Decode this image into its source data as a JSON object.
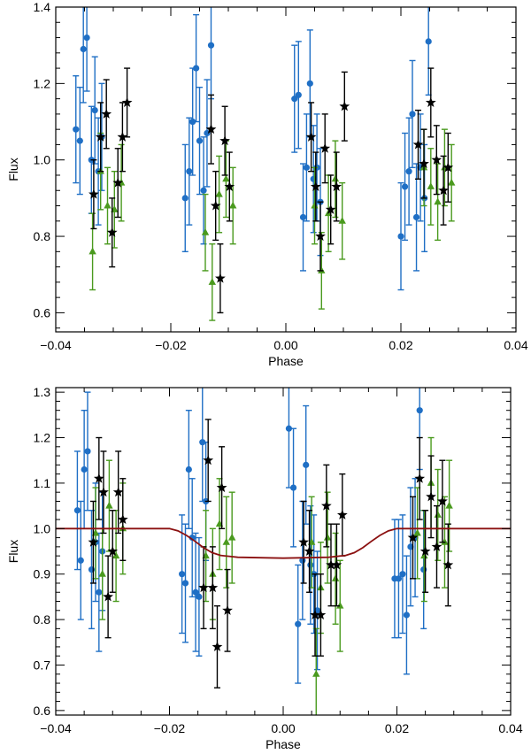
{
  "colors": {
    "blue": "#1f6fc5",
    "green": "#4a9a1e",
    "black": "#000000",
    "model": "#8b1010"
  },
  "chart_data": [
    {
      "type": "scatter",
      "title": "",
      "xlabel": "Phase",
      "ylabel": "Flux",
      "xlim": [
        -0.04,
        0.04
      ],
      "ylim": [
        0.55,
        1.4
      ],
      "xticks": [
        -0.04,
        -0.02,
        0.0,
        0.02,
        0.04
      ],
      "xtick_labels": [
        "−0.04",
        "−0.02",
        "0.00",
        "0.02",
        "0.04"
      ],
      "yticks": [
        0.6,
        0.8,
        1.0,
        1.2,
        1.4
      ],
      "ytick_labels": [
        "0.6",
        "0.8",
        "1.0",
        "1.2",
        "1.4"
      ],
      "series": [
        {
          "name": "blue",
          "marker": "circle",
          "color": "#1f6fc5",
          "points": [
            [
              -0.0365,
              1.08,
              0.14
            ],
            [
              -0.0358,
              1.05,
              0.14
            ],
            [
              -0.0352,
              1.29,
              0.14
            ],
            [
              -0.0346,
              1.32,
              0.14
            ],
            [
              -0.0338,
              1.0,
              0.14
            ],
            [
              -0.0332,
              1.13,
              0.14
            ],
            [
              -0.0326,
              0.97,
              0.14
            ],
            [
              -0.032,
              1.06,
              0.14
            ],
            [
              -0.0175,
              0.9,
              0.14
            ],
            [
              -0.0168,
              0.97,
              0.14
            ],
            [
              -0.0162,
              1.1,
              0.14
            ],
            [
              -0.0156,
              1.24,
              0.14
            ],
            [
              -0.015,
              1.05,
              0.14
            ],
            [
              -0.0143,
              0.92,
              0.14
            ],
            [
              -0.0137,
              1.07,
              0.14
            ],
            [
              -0.013,
              1.3,
              0.14
            ],
            [
              0.0015,
              1.16,
              0.14
            ],
            [
              0.0022,
              1.17,
              0.14
            ],
            [
              0.003,
              0.85,
              0.14
            ],
            [
              0.0036,
              0.98,
              0.14
            ],
            [
              0.0042,
              1.2,
              0.14
            ],
            [
              0.0048,
              0.95,
              0.14
            ],
            [
              0.0054,
              0.98,
              0.14
            ],
            [
              0.006,
              0.89,
              0.14
            ],
            [
              0.02,
              0.8,
              0.14
            ],
            [
              0.0207,
              0.93,
              0.14
            ],
            [
              0.0214,
              0.97,
              0.14
            ],
            [
              0.022,
              1.12,
              0.14
            ],
            [
              0.0227,
              0.85,
              0.14
            ],
            [
              0.0234,
              0.98,
              0.14
            ],
            [
              0.0241,
              0.9,
              0.14
            ],
            [
              0.0248,
              1.31,
              0.14
            ]
          ]
        },
        {
          "name": "green",
          "marker": "triangle",
          "color": "#4a9a1e",
          "points": [
            [
              -0.0336,
              0.76,
              0.1
            ],
            [
              -0.0322,
              0.97,
              0.1
            ],
            [
              -0.031,
              0.88,
              0.1
            ],
            [
              -0.0298,
              0.87,
              0.1
            ],
            [
              -0.0286,
              0.94,
              0.1
            ],
            [
              -0.014,
              0.81,
              0.1
            ],
            [
              -0.0128,
              0.68,
              0.1
            ],
            [
              -0.0116,
              0.91,
              0.1
            ],
            [
              -0.0104,
              0.95,
              0.1
            ],
            [
              -0.0092,
              0.88,
              0.1
            ],
            [
              0.005,
              0.88,
              0.1
            ],
            [
              0.0062,
              0.71,
              0.1
            ],
            [
              0.0074,
              0.86,
              0.1
            ],
            [
              0.0086,
              0.95,
              0.1
            ],
            [
              0.0098,
              0.84,
              0.1
            ],
            [
              0.024,
              0.98,
              0.1
            ],
            [
              0.0252,
              0.93,
              0.1
            ],
            [
              0.0264,
              0.89,
              0.1
            ],
            [
              0.0276,
              0.98,
              0.1
            ],
            [
              0.0288,
              0.94,
              0.1
            ]
          ]
        },
        {
          "name": "black",
          "marker": "star",
          "color": "#000000",
          "points": [
            [
              -0.0334,
              0.91,
              0.09
            ],
            [
              -0.0322,
              1.06,
              0.09
            ],
            [
              -0.0312,
              1.12,
              0.09
            ],
            [
              -0.0302,
              0.81,
              0.09
            ],
            [
              -0.0292,
              0.94,
              0.09
            ],
            [
              -0.0284,
              1.06,
              0.09
            ],
            [
              -0.0276,
              1.15,
              0.09
            ],
            [
              -0.013,
              1.08,
              0.09
            ],
            [
              -0.0122,
              0.88,
              0.09
            ],
            [
              -0.0114,
              0.69,
              0.09
            ],
            [
              -0.0106,
              1.05,
              0.09
            ],
            [
              -0.0098,
              0.93,
              0.09
            ],
            [
              0.0044,
              1.06,
              0.09
            ],
            [
              0.0052,
              0.93,
              0.09
            ],
            [
              0.006,
              0.8,
              0.09
            ],
            [
              0.0068,
              1.03,
              0.09
            ],
            [
              0.0078,
              0.87,
              0.09
            ],
            [
              0.0088,
              0.93,
              0.09
            ],
            [
              0.0102,
              1.14,
              0.09
            ],
            [
              0.023,
              1.04,
              0.09
            ],
            [
              0.024,
              0.99,
              0.09
            ],
            [
              0.0252,
              1.15,
              0.09
            ],
            [
              0.0262,
              1.0,
              0.09
            ],
            [
              0.0274,
              0.92,
              0.09
            ],
            [
              0.0282,
              0.98,
              0.09
            ]
          ]
        }
      ]
    },
    {
      "type": "scatter",
      "title": "",
      "xlabel": "Phase",
      "ylabel": "Flux",
      "xlim": [
        -0.04,
        0.04
      ],
      "ylim": [
        0.59,
        1.31
      ],
      "xticks": [
        -0.04,
        -0.02,
        0.0,
        0.02,
        0.04
      ],
      "xtick_labels": [
        "−0.04",
        "−0.02",
        "0.00",
        "0.02",
        "0.04"
      ],
      "yticks": [
        0.6,
        0.7,
        0.8,
        0.9,
        1.0,
        1.1,
        1.2,
        1.3
      ],
      "ytick_labels": [
        "0.6",
        "0.7",
        "0.8",
        "0.9",
        "1.0",
        "1.1",
        "1.2",
        "1.3"
      ],
      "model_line": {
        "name": "transit model",
        "color": "#8b1010",
        "x": [
          -0.04,
          -0.02,
          -0.0185,
          -0.017,
          -0.0155,
          -0.014,
          -0.0125,
          -0.011,
          -0.0095,
          -0.008,
          0.0,
          0.008,
          0.0095,
          0.011,
          0.0125,
          0.014,
          0.0155,
          0.017,
          0.0185,
          0.02,
          0.04
        ],
        "y": [
          1.0,
          1.0,
          0.995,
          0.985,
          0.972,
          0.958,
          0.947,
          0.941,
          0.939,
          0.937,
          0.935,
          0.937,
          0.939,
          0.941,
          0.947,
          0.958,
          0.972,
          0.985,
          0.995,
          1.0,
          1.0
        ]
      },
      "series": [
        {
          "name": "blue",
          "marker": "circle",
          "color": "#1f6fc5",
          "points": [
            [
              -0.0362,
              1.04,
              0.13
            ],
            [
              -0.0356,
              0.93,
              0.13
            ],
            [
              -0.035,
              1.13,
              0.13
            ],
            [
              -0.0344,
              1.17,
              0.13
            ],
            [
              -0.0337,
              0.91,
              0.13
            ],
            [
              -0.033,
              0.97,
              0.13
            ],
            [
              -0.0324,
              0.86,
              0.13
            ],
            [
              -0.0318,
              0.95,
              0.13
            ],
            [
              -0.0178,
              0.9,
              0.13
            ],
            [
              -0.0172,
              0.88,
              0.13
            ],
            [
              -0.0166,
              1.13,
              0.13
            ],
            [
              -0.016,
              0.98,
              0.13
            ],
            [
              -0.0154,
              0.86,
              0.13
            ],
            [
              -0.0148,
              0.85,
              0.13
            ],
            [
              -0.0142,
              1.19,
              0.13
            ],
            [
              -0.0136,
              1.06,
              0.13
            ],
            [
              0.001,
              1.22,
              0.13
            ],
            [
              0.0018,
              1.09,
              0.13
            ],
            [
              0.0026,
              0.79,
              0.13
            ],
            [
              0.0034,
              0.93,
              0.13
            ],
            [
              0.004,
              1.14,
              0.13
            ],
            [
              0.0048,
              0.92,
              0.13
            ],
            [
              0.0054,
              0.9,
              0.13
            ],
            [
              0.006,
              0.82,
              0.13
            ],
            [
              0.0196,
              0.89,
              0.13
            ],
            [
              0.0203,
              0.89,
              0.13
            ],
            [
              0.021,
              0.9,
              0.13
            ],
            [
              0.0217,
              0.81,
              0.13
            ],
            [
              0.0224,
              0.96,
              0.13
            ],
            [
              0.0232,
              0.98,
              0.13
            ],
            [
              0.024,
              1.26,
              0.13
            ],
            [
              0.0247,
              0.91,
              0.13
            ]
          ]
        },
        {
          "name": "green",
          "marker": "triangle",
          "color": "#4a9a1e",
          "points": [
            [
              -0.033,
              0.99,
              0.1
            ],
            [
              -0.0318,
              0.9,
              0.1
            ],
            [
              -0.0306,
              1.05,
              0.1
            ],
            [
              -0.0294,
              0.94,
              0.1
            ],
            [
              -0.0282,
              1.0,
              0.1
            ],
            [
              -0.0136,
              0.94,
              0.1
            ],
            [
              -0.0124,
              0.9,
              0.1
            ],
            [
              -0.0112,
              1.01,
              0.1
            ],
            [
              -0.01,
              0.97,
              0.1
            ],
            [
              -0.009,
              0.98,
              0.1
            ],
            [
              0.005,
              0.97,
              0.1
            ],
            [
              0.0058,
              0.68,
              0.1
            ],
            [
              0.0066,
              0.87,
              0.1
            ],
            [
              0.0078,
              0.98,
              0.1
            ],
            [
              0.0092,
              0.89,
              0.1
            ],
            [
              0.01,
              0.83,
              0.1
            ],
            [
              0.0236,
              0.99,
              0.1
            ],
            [
              0.0248,
              0.94,
              0.1
            ],
            [
              0.026,
              1.1,
              0.1
            ],
            [
              0.0272,
              1.03,
              0.1
            ],
            [
              0.0284,
              0.97,
              0.1
            ],
            [
              0.0292,
              1.05,
              0.1
            ]
          ]
        },
        {
          "name": "black",
          "marker": "star",
          "color": "#000000",
          "points": [
            [
              -0.0334,
              0.97,
              0.09
            ],
            [
              -0.0324,
              1.11,
              0.09
            ],
            [
              -0.0316,
              1.08,
              0.09
            ],
            [
              -0.0308,
              0.85,
              0.09
            ],
            [
              -0.03,
              0.95,
              0.09
            ],
            [
              -0.029,
              1.08,
              0.09
            ],
            [
              -0.0282,
              1.02,
              0.09
            ],
            [
              -0.014,
              0.87,
              0.09
            ],
            [
              -0.0132,
              1.15,
              0.09
            ],
            [
              -0.0124,
              0.87,
              0.09
            ],
            [
              -0.0116,
              0.74,
              0.09
            ],
            [
              -0.0108,
              1.09,
              0.09
            ],
            [
              -0.0098,
              0.82,
              0.09
            ],
            [
              0.0036,
              0.97,
              0.09
            ],
            [
              0.0046,
              0.95,
              0.09
            ],
            [
              0.0056,
              0.81,
              0.09
            ],
            [
              0.0066,
              0.81,
              0.09
            ],
            [
              0.0076,
              1.05,
              0.09
            ],
            [
              0.0084,
              0.92,
              0.09
            ],
            [
              0.0094,
              0.92,
              0.09
            ],
            [
              0.0104,
              1.03,
              0.09
            ],
            [
              0.0228,
              0.98,
              0.09
            ],
            [
              0.024,
              1.11,
              0.09
            ],
            [
              0.025,
              0.95,
              0.09
            ],
            [
              0.026,
              1.07,
              0.09
            ],
            [
              0.027,
              0.96,
              0.09
            ],
            [
              0.028,
              1.06,
              0.09
            ],
            [
              0.029,
              0.92,
              0.09
            ]
          ]
        }
      ]
    }
  ]
}
